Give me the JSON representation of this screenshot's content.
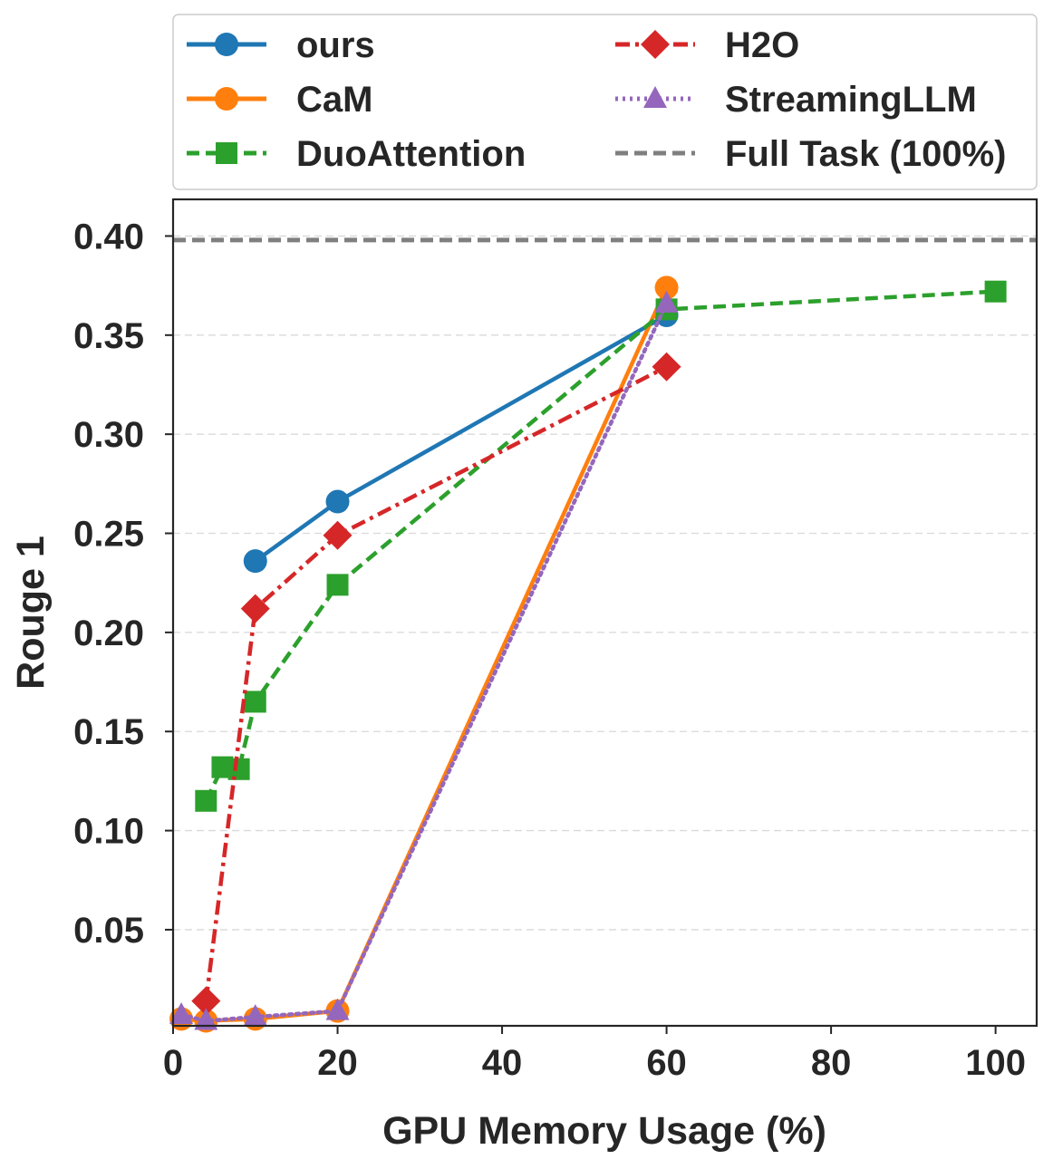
{
  "chart_data": {
    "type": "line",
    "title": "",
    "xlabel": "GPU Memory Usage (%)",
    "ylabel": "Rouge 1",
    "xlim": [
      0,
      105
    ],
    "ylim": [
      0.0015,
      0.4185
    ],
    "xticks": [
      0,
      20,
      40,
      60,
      80,
      100
    ],
    "xtick_labels": [
      "0",
      "20",
      "40",
      "60",
      "80",
      "100"
    ],
    "yticks": [
      0.05,
      0.1,
      0.15,
      0.2,
      0.25,
      0.3,
      0.35,
      0.4
    ],
    "ytick_labels": [
      "0.05",
      "0.10",
      "0.15",
      "0.20",
      "0.25",
      "0.30",
      "0.35",
      "0.40"
    ],
    "grid": "horizontal dashed",
    "legend_position": "top, above plot, two columns",
    "series": [
      {
        "name": "ours",
        "color": "#1f77b4",
        "linestyle": "solid",
        "marker": "circle",
        "points": [
          [
            10,
            0.236
          ],
          [
            20,
            0.266
          ],
          [
            60,
            0.36
          ]
        ]
      },
      {
        "name": "CaM",
        "color": "#ff7f0e",
        "linestyle": "solid",
        "marker": "circle",
        "points": [
          [
            1,
            0.005
          ],
          [
            4,
            0.004
          ],
          [
            10,
            0.005
          ],
          [
            20,
            0.009
          ],
          [
            60,
            0.374
          ]
        ]
      },
      {
        "name": "DuoAttention",
        "color": "#2ca02c",
        "linestyle": "dashed",
        "marker": "square",
        "points": [
          [
            4,
            0.115
          ],
          [
            6,
            0.132
          ],
          [
            8,
            0.131
          ],
          [
            10,
            0.165
          ],
          [
            20,
            0.224
          ],
          [
            60,
            0.363
          ],
          [
            100,
            0.372
          ]
        ]
      },
      {
        "name": "H2O",
        "color": "#d62728",
        "linestyle": "dashdot",
        "marker": "diamond",
        "points": [
          [
            4,
            0.014
          ],
          [
            10,
            0.212
          ],
          [
            20,
            0.249
          ],
          [
            60,
            0.334
          ]
        ]
      },
      {
        "name": "StreamingLLM",
        "color": "#9467bd",
        "linestyle": "dotted",
        "marker": "triangle",
        "points": [
          [
            1,
            0.007
          ],
          [
            4,
            0.004
          ],
          [
            10,
            0.006
          ],
          [
            20,
            0.009
          ],
          [
            60,
            0.366
          ]
        ]
      }
    ],
    "reference_line": {
      "name": "Full Task (100%)",
      "value": 0.398,
      "color": "#7f7f7f",
      "linestyle": "dashed"
    },
    "legend_order": [
      "ours",
      "H2O",
      "CaM",
      "StreamingLLM",
      "DuoAttention",
      "Full Task (100%)"
    ]
  }
}
